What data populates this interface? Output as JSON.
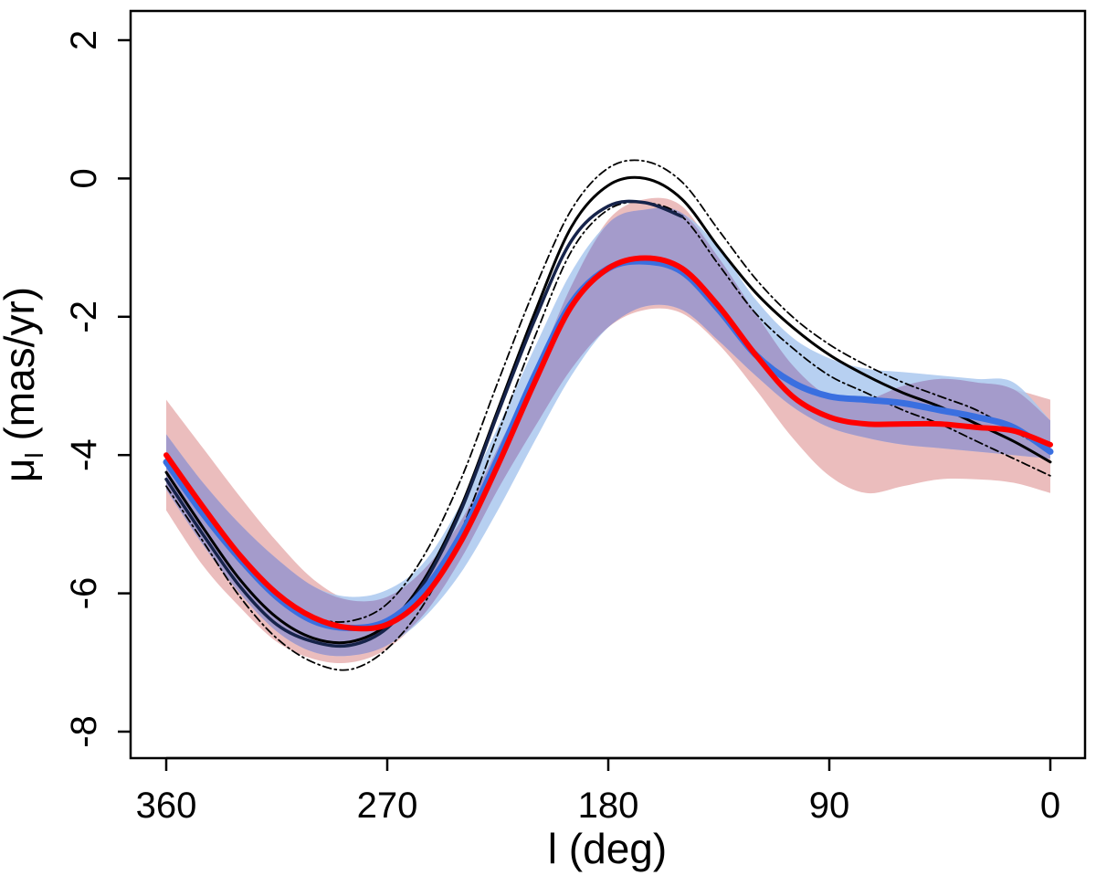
{
  "chart_data": {
    "type": "line",
    "title": "",
    "xlabel": "l (deg)",
    "ylabel_main": "μ",
    "ylabel_sub": "l",
    "ylabel_rest": " (mas/yr)",
    "xlim": [
      360,
      0
    ],
    "ylim": [
      -8.4,
      2.4
    ],
    "xticks": [
      {
        "value": 360,
        "label": "360"
      },
      {
        "value": 270,
        "label": "270"
      },
      {
        "value": 180,
        "label": "180"
      },
      {
        "value": 90,
        "label": "90"
      },
      {
        "value": 0,
        "label": "0"
      }
    ],
    "yticks": [
      {
        "value": 2,
        "label": "2"
      },
      {
        "value": 0,
        "label": "0"
      },
      {
        "value": -2,
        "label": "-2"
      },
      {
        "value": -4,
        "label": "-4"
      },
      {
        "value": -6,
        "label": "-6"
      },
      {
        "value": -8,
        "label": "-8"
      }
    ],
    "colors": {
      "red_band": "#e8b1b2",
      "blue_band": "#aac8ee",
      "overlap_band": "#a49bcb",
      "red_line": "#ff0000",
      "blue_line": "#3a6fe0",
      "black_line": "#000000",
      "navy_line": "#16234a"
    },
    "bands": [
      {
        "name": "red-band",
        "color": "#e8b1b2",
        "x": [
          360,
          345,
          330,
          315,
          300,
          285,
          270,
          255,
          240,
          225,
          210,
          195,
          180,
          165,
          150,
          135,
          120,
          105,
          90,
          75,
          60,
          45,
          30,
          15,
          0
        ],
        "lower": [
          -4.8,
          -5.6,
          -6.2,
          -6.7,
          -6.95,
          -7.0,
          -6.8,
          -6.3,
          -5.5,
          -4.5,
          -3.6,
          -2.75,
          -2.15,
          -1.9,
          -1.95,
          -2.4,
          -3.05,
          -3.75,
          -4.3,
          -4.55,
          -4.45,
          -4.35,
          -4.35,
          -4.4,
          -4.55
        ],
        "upper": [
          -3.2,
          -3.9,
          -4.6,
          -5.25,
          -5.8,
          -6.1,
          -6.05,
          -5.65,
          -4.95,
          -3.9,
          -2.8,
          -1.55,
          -0.6,
          -0.3,
          -0.4,
          -1.15,
          -1.95,
          -2.7,
          -3.15,
          -3.2,
          -3.0,
          -2.9,
          -2.95,
          -3.05,
          -3.2
        ]
      },
      {
        "name": "blue-band",
        "color": "#aac8ee",
        "x": [
          360,
          345,
          330,
          315,
          300,
          285,
          270,
          255,
          240,
          225,
          210,
          195,
          180,
          165,
          150,
          135,
          120,
          105,
          90,
          75,
          60,
          45,
          30,
          15,
          0
        ],
        "lower": [
          -4.5,
          -5.3,
          -6.0,
          -6.55,
          -6.85,
          -6.9,
          -6.75,
          -6.35,
          -5.7,
          -4.8,
          -3.8,
          -2.85,
          -2.15,
          -1.85,
          -1.9,
          -2.35,
          -2.85,
          -3.3,
          -3.6,
          -3.75,
          -3.85,
          -3.9,
          -3.95,
          -4.0,
          -4.05
        ],
        "upper": [
          -3.7,
          -4.4,
          -5.0,
          -5.5,
          -5.9,
          -6.05,
          -5.95,
          -5.55,
          -4.7,
          -3.6,
          -2.45,
          -1.35,
          -0.65,
          -0.45,
          -0.5,
          -1.0,
          -1.75,
          -2.3,
          -2.6,
          -2.75,
          -2.8,
          -2.85,
          -2.9,
          -2.95,
          -3.5
        ]
      }
    ],
    "series": [
      {
        "name": "black-solid",
        "style": "solid",
        "color": "#000000",
        "x": [
          360,
          345,
          330,
          315,
          300,
          285,
          270,
          255,
          240,
          225,
          210,
          195,
          180,
          165,
          150,
          135,
          120,
          105,
          90,
          75,
          60,
          45,
          30,
          15,
          0
        ],
        "values": [
          -4.25,
          -5.05,
          -5.8,
          -6.35,
          -6.65,
          -6.7,
          -6.45,
          -5.8,
          -4.75,
          -3.35,
          -1.95,
          -0.7,
          -0.1,
          0.0,
          -0.3,
          -1.0,
          -1.65,
          -2.15,
          -2.55,
          -2.85,
          -3.1,
          -3.3,
          -3.55,
          -3.8,
          -4.1
        ]
      },
      {
        "name": "black-dashdot-upper",
        "style": "dashdot",
        "color": "#000000",
        "x": [
          360,
          345,
          330,
          315,
          300,
          285,
          270,
          255,
          240,
          225,
          210,
          195,
          180,
          165,
          150,
          135,
          120,
          105,
          90,
          75,
          60,
          45,
          30,
          15,
          0
        ],
        "values": [
          -4.05,
          -4.85,
          -5.55,
          -6.05,
          -6.35,
          -6.4,
          -6.15,
          -5.45,
          -4.35,
          -2.95,
          -1.6,
          -0.45,
          0.15,
          0.25,
          -0.05,
          -0.75,
          -1.45,
          -2.0,
          -2.4,
          -2.7,
          -2.95,
          -3.15,
          -3.35,
          -3.65,
          -3.95
        ]
      },
      {
        "name": "black-dashdot-lower",
        "style": "dashdot",
        "color": "#000000",
        "x": [
          360,
          345,
          330,
          315,
          300,
          285,
          270,
          255,
          240,
          225,
          210,
          195,
          180,
          165,
          150,
          135,
          120,
          105,
          90,
          75,
          60,
          45,
          30,
          15,
          0
        ],
        "values": [
          -4.45,
          -5.25,
          -6.05,
          -6.65,
          -7.0,
          -7.1,
          -6.8,
          -6.15,
          -5.1,
          -3.7,
          -2.3,
          -1.05,
          -0.45,
          -0.35,
          -0.55,
          -1.25,
          -1.95,
          -2.45,
          -2.85,
          -3.1,
          -3.35,
          -3.55,
          -3.8,
          -4.05,
          -4.3
        ]
      },
      {
        "name": "navy-line",
        "style": "solid",
        "color": "#16234a",
        "x": [
          360,
          345,
          330,
          315,
          300,
          285,
          270,
          255,
          240,
          225,
          210,
          195,
          180,
          165,
          150
        ],
        "values": [
          -4.35,
          -5.15,
          -5.9,
          -6.45,
          -6.7,
          -6.75,
          -6.5,
          -5.85,
          -4.8,
          -3.4,
          -2.05,
          -0.9,
          -0.4,
          -0.35,
          -0.55
        ]
      },
      {
        "name": "blue-line",
        "style": "solid",
        "color": "#3a6fe0",
        "x": [
          360,
          345,
          330,
          315,
          300,
          285,
          270,
          255,
          240,
          225,
          210,
          195,
          180,
          165,
          150,
          135,
          120,
          105,
          90,
          75,
          60,
          45,
          30,
          15,
          0
        ],
        "values": [
          -4.1,
          -4.85,
          -5.5,
          -6.05,
          -6.4,
          -6.5,
          -6.4,
          -5.95,
          -5.15,
          -4.05,
          -2.85,
          -1.8,
          -1.3,
          -1.2,
          -1.35,
          -1.9,
          -2.55,
          -2.95,
          -3.15,
          -3.2,
          -3.25,
          -3.35,
          -3.45,
          -3.6,
          -3.95
        ]
      },
      {
        "name": "red-line",
        "style": "solid",
        "color": "#ff0000",
        "x": [
          360,
          345,
          330,
          315,
          300,
          285,
          270,
          255,
          240,
          225,
          210,
          195,
          180,
          165,
          150,
          135,
          120,
          105,
          90,
          75,
          60,
          45,
          30,
          15,
          0
        ],
        "values": [
          -4.0,
          -4.75,
          -5.45,
          -6.0,
          -6.35,
          -6.5,
          -6.45,
          -6.05,
          -5.25,
          -4.15,
          -2.95,
          -1.85,
          -1.3,
          -1.15,
          -1.3,
          -1.85,
          -2.55,
          -3.15,
          -3.45,
          -3.55,
          -3.55,
          -3.55,
          -3.6,
          -3.65,
          -3.85
        ]
      }
    ]
  }
}
